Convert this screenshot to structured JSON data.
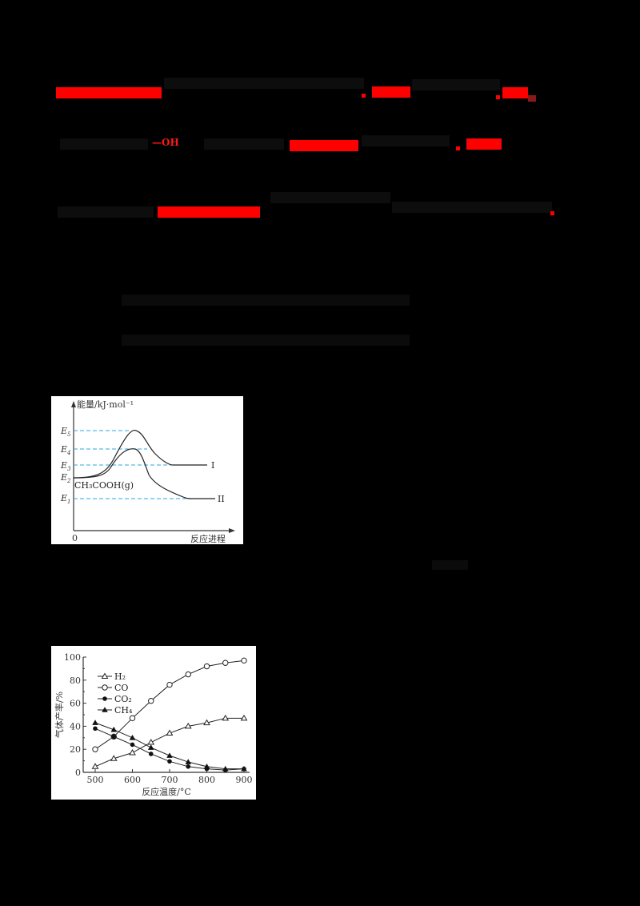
{
  "page": {
    "background": "#000000",
    "note": "Document body text is rendered black-on-black and is illegible; only red highlights and figures are visible."
  },
  "text_lines": [
    {
      "id": "line1",
      "highlights": [
        {
          "text": "",
          "color": "#ff0000"
        },
        {
          "text": "",
          "color": "#ff0000"
        },
        {
          "text": "",
          "color": "#ff0000"
        }
      ]
    },
    {
      "id": "line2",
      "highlights": [
        {
          "text": "—OH",
          "color": "#ff0000"
        },
        {
          "text": "",
          "color": "#ff0000"
        },
        {
          "text": "",
          "color": "#ff0000"
        }
      ]
    },
    {
      "id": "line3",
      "highlights": [
        {
          "text": "",
          "color": "#ff0000"
        }
      ]
    }
  ],
  "figure1": {
    "y_axis_label": "能量/kJ·mol⁻¹",
    "x_axis_label": "反应进程",
    "origin_label": "0",
    "levels": [
      "E1",
      "E2",
      "E3",
      "E4",
      "E5"
    ],
    "reactant_label": "CH₃COOH(g)",
    "path_labels": [
      "I",
      "II"
    ],
    "dash_color": "#29a8e0"
  },
  "chart_data": {
    "type": "line",
    "title": "",
    "xlabel": "反应温度/°C",
    "ylabel": "气体产率/%",
    "x": [
      500,
      550,
      600,
      650,
      700,
      750,
      800,
      850,
      900
    ],
    "xticks": [
      500,
      600,
      700,
      800,
      900
    ],
    "yticks": [
      0,
      20,
      40,
      60,
      80,
      100
    ],
    "xlim": [
      480,
      910
    ],
    "ylim": [
      0,
      100
    ],
    "grid": false,
    "legend_position": "upper left",
    "series": [
      {
        "name": "H2",
        "label": "H₂",
        "marker": "open-triangle",
        "values": [
          5,
          12,
          17,
          26,
          34,
          40,
          43,
          47,
          47
        ]
      },
      {
        "name": "CO",
        "label": "CO",
        "marker": "open-circle",
        "values": [
          20,
          31,
          47,
          62,
          76,
          85,
          92,
          95,
          97
        ]
      },
      {
        "name": "CO2",
        "label": "CO₂",
        "marker": "filled-circle",
        "values": [
          38,
          31,
          24,
          16,
          9.5,
          5,
          3,
          2,
          3
        ]
      },
      {
        "name": "CH4",
        "label": "CH₄",
        "marker": "filled-triangle",
        "values": [
          43,
          37,
          30,
          21.5,
          14.5,
          9,
          5,
          3,
          3
        ]
      }
    ]
  }
}
